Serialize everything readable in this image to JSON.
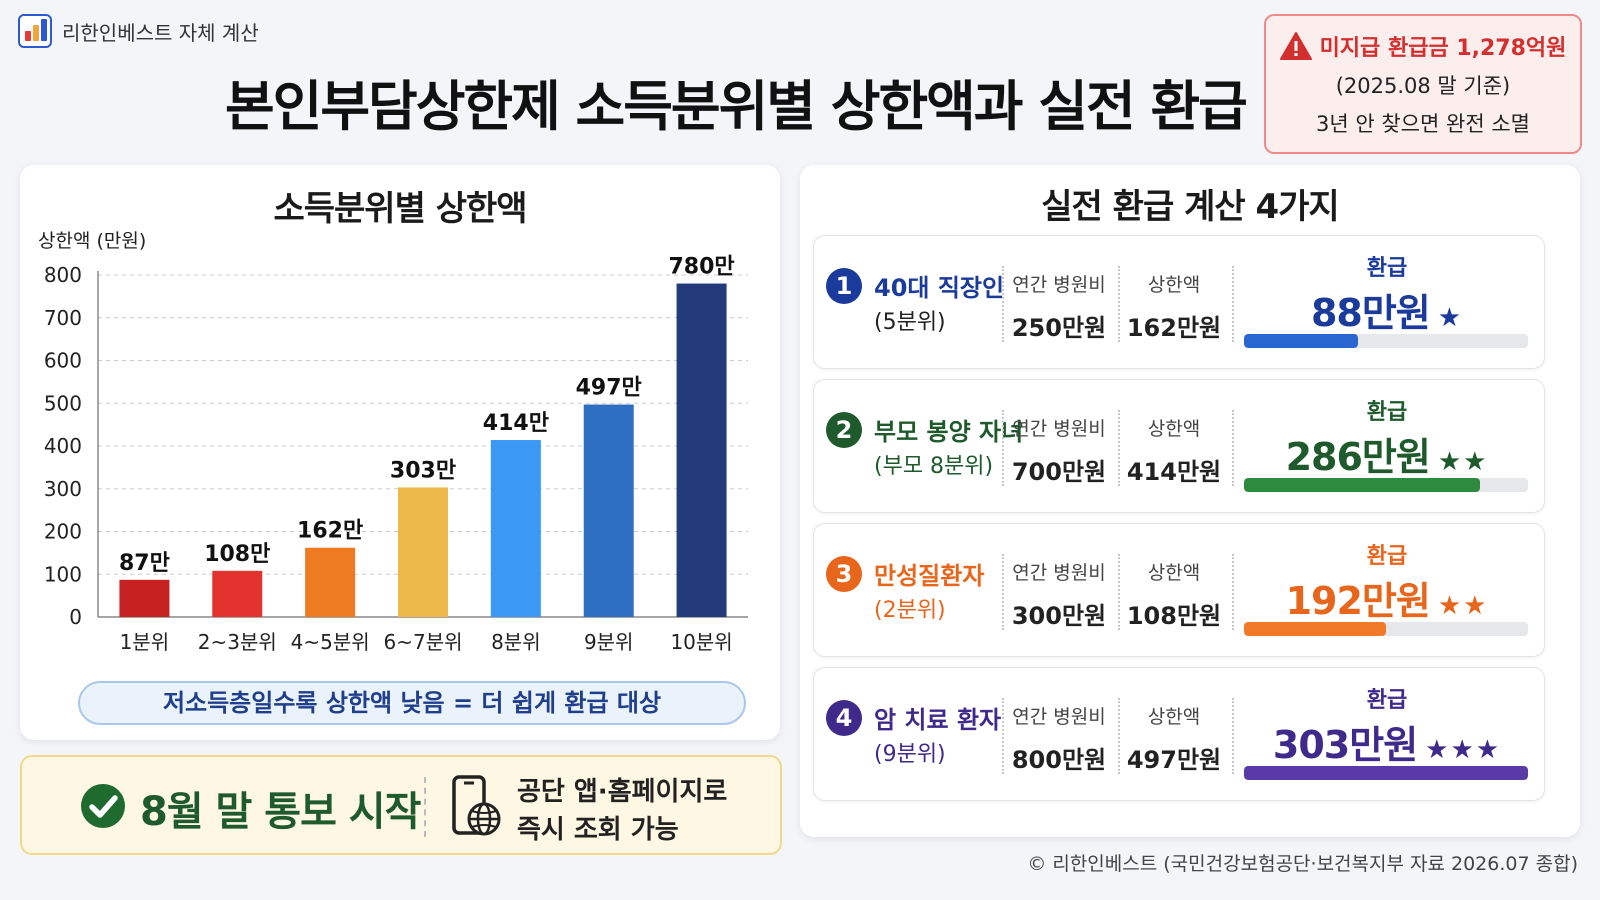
{
  "brand": {
    "name": "리한인베스트 자체 계산"
  },
  "title": "본인부담상한제 소득분위별 상한액과 실전 환급 계산",
  "alert": {
    "headline": "미지급 환급금 1,278억원",
    "line1": "(2025.08 말 기준)",
    "line2": "3년 안 찾으면 완전 소멸",
    "color": "#d32f2f"
  },
  "chart_data": {
    "type": "bar",
    "title": "소득분위별 상한액",
    "ylabel": "상한액 (만원)",
    "xlabel": "",
    "categories": [
      "1분위",
      "2~3분위",
      "4~5분위",
      "6~7분위",
      "8분위",
      "9분위",
      "10분위"
    ],
    "values": [
      87,
      108,
      162,
      303,
      414,
      497,
      780
    ],
    "data_labels": [
      "87만",
      "108만",
      "162만",
      "303만",
      "414만",
      "497만",
      "780만"
    ],
    "colors": [
      "#c62222",
      "#e2332e",
      "#ee7a22",
      "#ecb94a",
      "#3b99f5",
      "#2f6fc1",
      "#233b7a"
    ],
    "ylim": [
      0,
      800
    ],
    "yticks": [
      0,
      100,
      200,
      300,
      400,
      500,
      600,
      700,
      800
    ],
    "grid": true,
    "legend": "none"
  },
  "chart_note": "저소득층일수록 상한액 낮음 = 더 쉽게 환급 대상",
  "notice": {
    "main": "8월 말 통보 시작",
    "sub_line1": "공단 앱·홈페이지로",
    "sub_line2": "즉시 조회 가능"
  },
  "calc": {
    "title": "실전 환급 계산 4가지",
    "cost_label": "연간 병원비",
    "cap_label": "상한액",
    "refund_label": "환급",
    "items": [
      {
        "num": "1",
        "name": "40대 직장인",
        "category": "(5분위)",
        "cost": "250만원",
        "cap": "162만원",
        "refund": "88만원",
        "stars": "★",
        "progress": 0.4,
        "color": "#1a3a9c",
        "bar_color": "#2a66d0",
        "cat_color": "#222222"
      },
      {
        "num": "2",
        "name": "부모 봉양 자녀",
        "category": "(부모 8분위)",
        "cost": "700만원",
        "cap": "414만원",
        "refund": "286만원",
        "stars": "★★",
        "progress": 0.83,
        "color": "#1e5a2b",
        "bar_color": "#2e8b3e",
        "cat_color": "#1e5a2b"
      },
      {
        "num": "3",
        "name": "만성질환자",
        "category": "(2분위)",
        "cost": "300만원",
        "cap": "108만원",
        "refund": "192만원",
        "stars": "★★",
        "progress": 0.5,
        "color": "#e8651c",
        "bar_color": "#f07a2a",
        "cat_color": "#e8651c"
      },
      {
        "num": "4",
        "name": "암 치료 환자",
        "category": "(9분위)",
        "cost": "800만원",
        "cap": "497만원",
        "refund": "303만원",
        "stars": "★★★",
        "progress": 1.0,
        "color": "#3f2a8c",
        "bar_color": "#5a3aa6",
        "cat_color": "#3f2a8c"
      }
    ]
  },
  "footer": "© 리한인베스트 (국민건강보험공단·보건복지부 자료 2026.07 종합)"
}
